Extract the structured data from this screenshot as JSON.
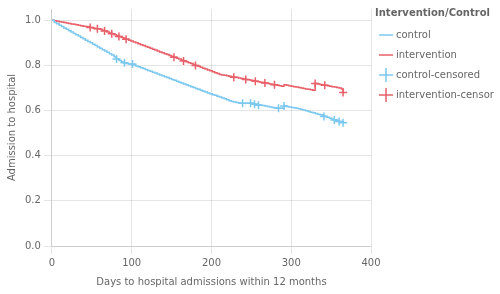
{
  "chart_data": {
    "type": "line",
    "title": "Intervention/Control",
    "xlabel": "Days to hospital admissions within 12 months",
    "ylabel": "Admission to hospital",
    "xlim": [
      0,
      400
    ],
    "ylim": [
      0.0,
      1.05
    ],
    "xticks": [
      0,
      100,
      200,
      300,
      400
    ],
    "yticks": [
      {
        "value": 0.0,
        "label": "0.0"
      },
      0.2,
      0.4,
      0.6,
      0.8,
      {
        "value": 1.0,
        "label": "1.0"
      }
    ],
    "grid": true,
    "legend": "right",
    "series": [
      {
        "name": "control",
        "type": "step",
        "color": "#7BC8F0",
        "x": [
          0,
          3,
          6,
          9,
          12,
          15,
          18,
          21,
          24,
          27,
          30,
          33,
          36,
          39,
          42,
          45,
          48,
          51,
          54,
          57,
          60,
          63,
          66,
          69,
          72,
          75,
          78,
          81,
          84,
          87,
          90,
          93,
          96,
          99,
          102,
          105,
          108,
          111,
          114,
          117,
          120,
          123,
          126,
          129,
          132,
          135,
          138,
          141,
          144,
          147,
          150,
          153,
          156,
          159,
          162,
          165,
          168,
          171,
          174,
          177,
          180,
          183,
          186,
          189,
          192,
          195,
          198,
          201,
          204,
          207,
          210,
          213,
          216,
          219,
          222,
          225,
          228,
          231,
          234,
          237,
          240,
          243,
          246,
          249,
          252,
          255,
          258,
          261,
          264,
          267,
          270,
          273,
          276,
          279,
          282,
          285,
          288,
          291,
          294,
          297,
          300,
          303,
          306,
          309,
          312,
          315,
          318,
          321,
          324,
          327,
          330,
          333,
          336,
          339,
          342,
          345,
          348,
          351,
          354,
          357,
          360,
          363,
          365
        ],
        "values": [
          1.0,
          0.99,
          0.985,
          0.978,
          0.972,
          0.966,
          0.96,
          0.954,
          0.948,
          0.942,
          0.936,
          0.93,
          0.924,
          0.918,
          0.912,
          0.906,
          0.9,
          0.894,
          0.888,
          0.882,
          0.876,
          0.87,
          0.864,
          0.858,
          0.852,
          0.846,
          0.838,
          0.828,
          0.822,
          0.816,
          0.812,
          0.808,
          0.806,
          0.804,
          0.802,
          0.798,
          0.794,
          0.79,
          0.786,
          0.782,
          0.778,
          0.774,
          0.77,
          0.766,
          0.762,
          0.758,
          0.754,
          0.75,
          0.746,
          0.742,
          0.738,
          0.734,
          0.73,
          0.726,
          0.722,
          0.718,
          0.714,
          0.71,
          0.706,
          0.702,
          0.698,
          0.694,
          0.69,
          0.686,
          0.682,
          0.678,
          0.674,
          0.67,
          0.668,
          0.664,
          0.66,
          0.656,
          0.652,
          0.648,
          0.644,
          0.64,
          0.638,
          0.636,
          0.634,
          0.632,
          0.632,
          0.632,
          0.632,
          0.632,
          0.63,
          0.628,
          0.626,
          0.624,
          0.622,
          0.62,
          0.618,
          0.616,
          0.614,
          0.612,
          0.61,
          0.61,
          0.61,
          0.62,
          0.618,
          0.616,
          0.614,
          0.612,
          0.61,
          0.608,
          0.605,
          0.602,
          0.599,
          0.596,
          0.593,
          0.59,
          0.587,
          0.584,
          0.581,
          0.578,
          0.574,
          0.57,
          0.566,
          0.562,
          0.558,
          0.555,
          0.552,
          0.549,
          0.546
        ]
      },
      {
        "name": "intervention",
        "type": "step",
        "color": "#E8606A",
        "x": [
          0,
          3,
          6,
          9,
          12,
          15,
          18,
          21,
          24,
          27,
          30,
          33,
          36,
          39,
          42,
          45,
          48,
          51,
          54,
          57,
          60,
          63,
          66,
          69,
          72,
          75,
          78,
          81,
          84,
          87,
          90,
          93,
          96,
          99,
          102,
          105,
          108,
          111,
          114,
          117,
          120,
          123,
          126,
          129,
          132,
          135,
          138,
          141,
          144,
          147,
          150,
          153,
          156,
          159,
          162,
          165,
          168,
          171,
          174,
          177,
          180,
          183,
          186,
          189,
          192,
          195,
          198,
          201,
          204,
          207,
          210,
          213,
          216,
          219,
          222,
          225,
          228,
          231,
          234,
          237,
          240,
          243,
          246,
          249,
          252,
          255,
          258,
          261,
          264,
          267,
          270,
          273,
          276,
          279,
          282,
          285,
          288,
          291,
          294,
          297,
          300,
          303,
          306,
          309,
          312,
          315,
          318,
          321,
          324,
          327,
          330,
          333,
          336,
          339,
          342,
          345,
          348,
          351,
          354,
          357,
          360,
          363,
          365
        ],
        "values": [
          1.0,
          0.998,
          0.996,
          0.994,
          0.992,
          0.99,
          0.988,
          0.986,
          0.984,
          0.982,
          0.98,
          0.978,
          0.976,
          0.974,
          0.972,
          0.97,
          0.968,
          0.966,
          0.964,
          0.962,
          0.96,
          0.956,
          0.952,
          0.948,
          0.944,
          0.94,
          0.936,
          0.932,
          0.928,
          0.924,
          0.92,
          0.916,
          0.912,
          0.908,
          0.904,
          0.9,
          0.896,
          0.892,
          0.888,
          0.884,
          0.88,
          0.876,
          0.872,
          0.868,
          0.864,
          0.86,
          0.856,
          0.852,
          0.848,
          0.844,
          0.84,
          0.836,
          0.832,
          0.828,
          0.824,
          0.82,
          0.816,
          0.812,
          0.808,
          0.804,
          0.8,
          0.796,
          0.792,
          0.788,
          0.784,
          0.78,
          0.776,
          0.772,
          0.768,
          0.764,
          0.76,
          0.758,
          0.756,
          0.754,
          0.752,
          0.75,
          0.748,
          0.746,
          0.744,
          0.742,
          0.74,
          0.738,
          0.736,
          0.734,
          0.732,
          0.73,
          0.728,
          0.726,
          0.724,
          0.722,
          0.72,
          0.718,
          0.716,
          0.714,
          0.712,
          0.71,
          0.708,
          0.714,
          0.712,
          0.71,
          0.708,
          0.706,
          0.704,
          0.702,
          0.7,
          0.698,
          0.696,
          0.694,
          0.692,
          0.69,
          0.72,
          0.718,
          0.716,
          0.714,
          0.712,
          0.71,
          0.708,
          0.706,
          0.704,
          0.702,
          0.7,
          0.696,
          0.68
        ]
      },
      {
        "name": "control-censored",
        "type": "scatter",
        "marker": "plus",
        "color": "#7BC8F0",
        "x": [
          81,
          91,
          101,
          239,
          249,
          254,
          259,
          284,
          291,
          341,
          354,
          360,
          365
        ],
        "values": [
          0.828,
          0.812,
          0.806,
          0.632,
          0.632,
          0.628,
          0.624,
          0.61,
          0.62,
          0.574,
          0.558,
          0.552,
          0.546
        ]
      },
      {
        "name": "intervention-censored",
        "type": "scatter",
        "marker": "plus",
        "color": "#E8606A",
        "x": [
          48,
          57,
          66,
          75,
          84,
          93,
          153,
          165,
          180,
          228,
          243,
          255,
          267,
          279,
          330,
          342,
          365
        ],
        "values": [
          0.968,
          0.962,
          0.952,
          0.94,
          0.928,
          0.916,
          0.836,
          0.82,
          0.8,
          0.748,
          0.738,
          0.73,
          0.722,
          0.714,
          0.72,
          0.712,
          0.68
        ]
      }
    ]
  }
}
